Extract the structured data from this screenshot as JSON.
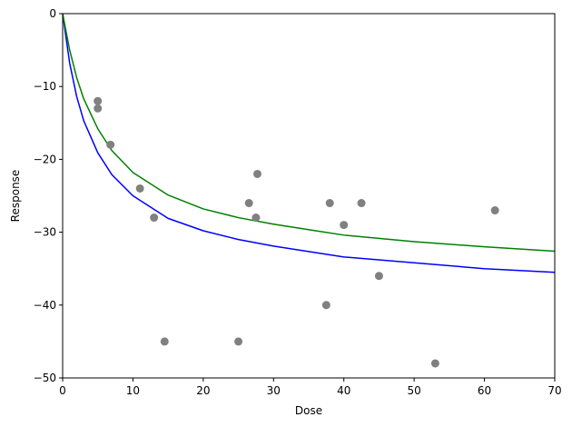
{
  "chart_data": {
    "type": "scatter",
    "xlabel": "Dose",
    "ylabel": "Response",
    "xlim": [
      0,
      70
    ],
    "ylim": [
      -50,
      0
    ],
    "xticks": [
      0,
      10,
      20,
      30,
      40,
      50,
      60,
      70
    ],
    "yticks": [
      0,
      -10,
      -20,
      -30,
      -40,
      -50
    ],
    "xtick_labels": [
      "0",
      "10",
      "20",
      "30",
      "40",
      "50",
      "60",
      "70"
    ],
    "ytick_labels": [
      "0",
      "−10",
      "−20",
      "−30",
      "−40",
      "−50"
    ],
    "grid": false,
    "points": {
      "color": "#808080",
      "x": [
        5,
        5,
        6.8,
        11,
        13,
        14.5,
        25,
        26.5,
        27.5,
        27.7,
        37.5,
        38,
        40,
        42.5,
        45,
        53,
        61.5
      ],
      "y": [
        -12,
        -13,
        -18,
        -24,
        -28,
        -45,
        -45,
        -26,
        -28,
        -22,
        -40,
        -26,
        -29,
        -26,
        -36,
        -48,
        -27
      ]
    },
    "curves": [
      {
        "color": "#0000ff",
        "x": [
          0,
          1,
          2,
          3,
          5,
          7,
          10,
          15,
          20,
          25,
          30,
          40,
          50,
          60,
          70
        ],
        "y": [
          0,
          -6.8,
          -11.4,
          -14.7,
          -19.1,
          -22.1,
          -25.0,
          -28.1,
          -29.8,
          -31.0,
          -31.9,
          -33.4,
          -34.2,
          -35.0,
          -35.5
        ]
      },
      {
        "color": "#008000",
        "x": [
          0,
          1,
          2,
          3,
          5,
          7,
          10,
          15,
          20,
          25,
          30,
          40,
          50,
          60,
          70
        ],
        "y": [
          0,
          -5.0,
          -8.8,
          -11.7,
          -15.8,
          -18.8,
          -21.8,
          -24.9,
          -26.8,
          -28.0,
          -28.9,
          -30.4,
          -31.3,
          -32.0,
          -32.6
        ]
      }
    ]
  }
}
